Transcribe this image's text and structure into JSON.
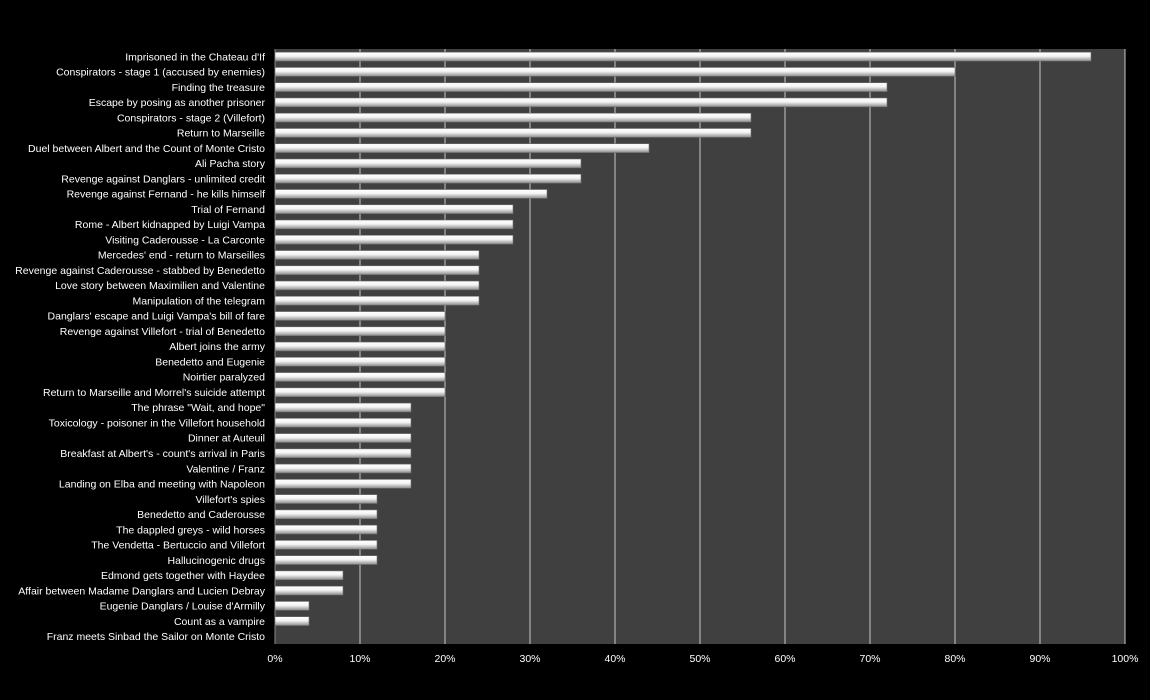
{
  "chart_data": {
    "type": "bar",
    "orientation": "horizontal",
    "title": "",
    "xlabel": "",
    "ylabel": "",
    "xlim": [
      0,
      100
    ],
    "x_ticks": [
      "0%",
      "10%",
      "20%",
      "30%",
      "40%",
      "50%",
      "60%",
      "70%",
      "80%",
      "90%",
      "100%"
    ],
    "grid": true,
    "legend": "none",
    "colors": {
      "background": "#000000",
      "plot_area": "#404040",
      "bar": "#f2f2f2",
      "grid": "#c8c8c8",
      "text": "#ffffff"
    },
    "categories": [
      "Imprisoned in the Chateau d'If",
      "Conspirators - stage 1 (accused by enemies)",
      "Finding the treasure",
      "Escape by posing as another prisoner",
      "Conspirators - stage 2 (Villefort)",
      "Return to Marseille",
      "Duel between Albert and the Count of Monte Cristo",
      "Ali Pacha story",
      "Revenge against Danglars - unlimited credit",
      "Revenge against Fernand - he kills himself",
      "Trial of Fernand",
      "Rome - Albert kidnapped by Luigi Vampa",
      "Visiting Caderousse - La Carconte",
      "Mercedes' end - return to Marseilles",
      "Revenge against Caderousse - stabbed by Benedetto",
      "Love story between Maximilien and Valentine",
      "Manipulation of the telegram",
      "Danglars' escape and Luigi Vampa's bill of fare",
      "Revenge against Villefort - trial of Benedetto",
      "Albert joins the army",
      "Benedetto and Eugenie",
      "Noirtier paralyzed",
      "Return to Marseille and Morrel's suicide attempt",
      "The phrase \"Wait, and hope\"",
      "Toxicology - poisoner in the Villefort household",
      "Dinner at Auteuil",
      "Breakfast at Albert's - count's arrival in Paris",
      "Valentine / Franz",
      "Landing on Elba and meeting with Napoleon",
      "Villefort's spies",
      "Benedetto and Caderousse",
      "The dappled greys - wild horses",
      "The Vendetta - Bertuccio and Villefort",
      "Hallucinogenic drugs",
      "Edmond gets together with Haydee",
      "Affair between Madame Danglars and Lucien Debray",
      "Eugenie Danglars / Louise d'Armilly",
      "Count as a vampire",
      "Franz meets Sinbad the Sailor on Monte Cristo"
    ],
    "values": [
      96,
      80,
      72,
      72,
      56,
      56,
      44,
      36,
      36,
      32,
      28,
      28,
      28,
      24,
      24,
      24,
      24,
      20,
      20,
      20,
      20,
      20,
      20,
      16,
      16,
      16,
      16,
      16,
      16,
      12,
      12,
      12,
      12,
      12,
      8,
      8,
      4,
      4,
      0
    ]
  }
}
